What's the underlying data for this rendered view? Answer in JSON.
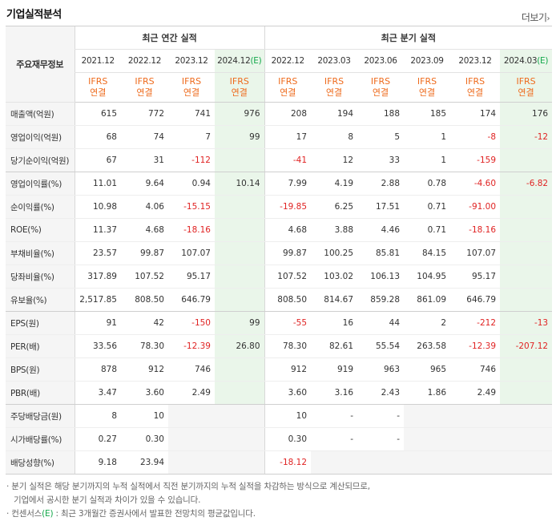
{
  "title": "기업실적분석",
  "more_label": "더보기",
  "more_arrow": "›",
  "row_header_label": "주요재무정보",
  "groups": {
    "annual": "최근 연간 실적",
    "quarterly": "최근 분기 실적"
  },
  "columns": [
    {
      "date": "2021.12",
      "ifrs": "IFRS",
      "basis": "연결",
      "est": false
    },
    {
      "date": "2022.12",
      "ifrs": "IFRS",
      "basis": "연결",
      "est": false
    },
    {
      "date": "2023.12",
      "ifrs": "IFRS",
      "basis": "연결",
      "est": false
    },
    {
      "date": "2024.12",
      "est_mark": "(E)",
      "ifrs": "IFRS",
      "basis": "연결",
      "est": true
    },
    {
      "date": "2022.12",
      "ifrs": "IFRS",
      "basis": "연결",
      "est": false
    },
    {
      "date": "2023.03",
      "ifrs": "IFRS",
      "basis": "연결",
      "est": false
    },
    {
      "date": "2023.06",
      "ifrs": "IFRS",
      "basis": "연결",
      "est": false
    },
    {
      "date": "2023.09",
      "ifrs": "IFRS",
      "basis": "연결",
      "est": false
    },
    {
      "date": "2023.12",
      "ifrs": "IFRS",
      "basis": "연결",
      "est": false
    },
    {
      "date": "2024.03",
      "est_mark": "(E)",
      "ifrs": "IFRS",
      "basis": "연결",
      "est": true
    }
  ],
  "rows": [
    {
      "label": "매출액(억원)",
      "values": [
        "615",
        "772",
        "741",
        "976",
        "208",
        "194",
        "188",
        "185",
        "174",
        "176"
      ]
    },
    {
      "label": "영업이익(억원)",
      "values": [
        "68",
        "74",
        "7",
        "99",
        "17",
        "8",
        "5",
        "1",
        "-8",
        "-12"
      ]
    },
    {
      "label": "당기순이익(억원)",
      "values": [
        "67",
        "31",
        "-112",
        "",
        "-41",
        "12",
        "33",
        "1",
        "-159",
        ""
      ]
    },
    {
      "label": "영업이익률(%)",
      "values": [
        "11.01",
        "9.64",
        "0.94",
        "10.14",
        "7.99",
        "4.19",
        "2.88",
        "0.78",
        "-4.60",
        "-6.82"
      ]
    },
    {
      "label": "순이익률(%)",
      "values": [
        "10.98",
        "4.06",
        "-15.15",
        "",
        "-19.85",
        "6.25",
        "17.51",
        "0.71",
        "-91.00",
        ""
      ]
    },
    {
      "label": "ROE(%)",
      "values": [
        "11.37",
        "4.68",
        "-18.16",
        "",
        "4.68",
        "3.88",
        "4.46",
        "0.71",
        "-18.16",
        ""
      ]
    },
    {
      "label": "부채비율(%)",
      "values": [
        "23.57",
        "99.87",
        "107.07",
        "",
        "99.87",
        "100.25",
        "85.81",
        "84.15",
        "107.07",
        ""
      ]
    },
    {
      "label": "당좌비율(%)",
      "values": [
        "317.89",
        "107.52",
        "95.17",
        "",
        "107.52",
        "103.02",
        "106.13",
        "104.95",
        "95.17",
        ""
      ]
    },
    {
      "label": "유보율(%)",
      "values": [
        "2,517.85",
        "808.50",
        "646.79",
        "",
        "808.50",
        "814.67",
        "859.28",
        "861.09",
        "646.79",
        ""
      ]
    },
    {
      "label": "EPS(원)",
      "values": [
        "91",
        "42",
        "-150",
        "99",
        "-55",
        "16",
        "44",
        "2",
        "-212",
        "-13"
      ]
    },
    {
      "label": "PER(배)",
      "values": [
        "33.56",
        "78.30",
        "-12.39",
        "26.80",
        "78.30",
        "82.61",
        "55.54",
        "263.58",
        "-12.39",
        "-207.12"
      ]
    },
    {
      "label": "BPS(원)",
      "values": [
        "878",
        "912",
        "746",
        "",
        "912",
        "919",
        "963",
        "965",
        "746",
        ""
      ]
    },
    {
      "label": "PBR(배)",
      "values": [
        "3.47",
        "3.60",
        "2.49",
        "",
        "3.60",
        "3.16",
        "2.43",
        "1.86",
        "2.49",
        ""
      ]
    },
    {
      "label": "주당배당금(원)",
      "values": [
        "8",
        "10",
        "",
        "",
        "10",
        "-",
        "-",
        "",
        "",
        ""
      ]
    },
    {
      "label": "시가배당률(%)",
      "values": [
        "0.27",
        "0.30",
        "",
        "",
        "0.30",
        "-",
        "-",
        "",
        "",
        ""
      ]
    },
    {
      "label": "배당성향(%)",
      "values": [
        "9.18",
        "23.94",
        "",
        "",
        "-18.12",
        "",
        "",
        "",
        "",
        ""
      ]
    }
  ],
  "notes": {
    "line1": "· 분기 실적은 해당 분기까지의 누적 실적에서 직전 분기까지의 누적 실적을 차감하는 방식으로 계산되므로,",
    "line2": "기업에서 공시한 분기 실적과 차이가 있을 수 있습니다.",
    "line3_prefix": "· 컨센서스",
    "line3_mark": "(E)",
    "line3_suffix": " : 최근 3개월간 증권사에서 발표한 전망치의 평균값입니다."
  },
  "colors": {
    "negative": "#e02323",
    "ifrs": "#ee6b1d",
    "estimate_bg": "#eaf6ea",
    "estimate_mark": "#13a84a"
  }
}
